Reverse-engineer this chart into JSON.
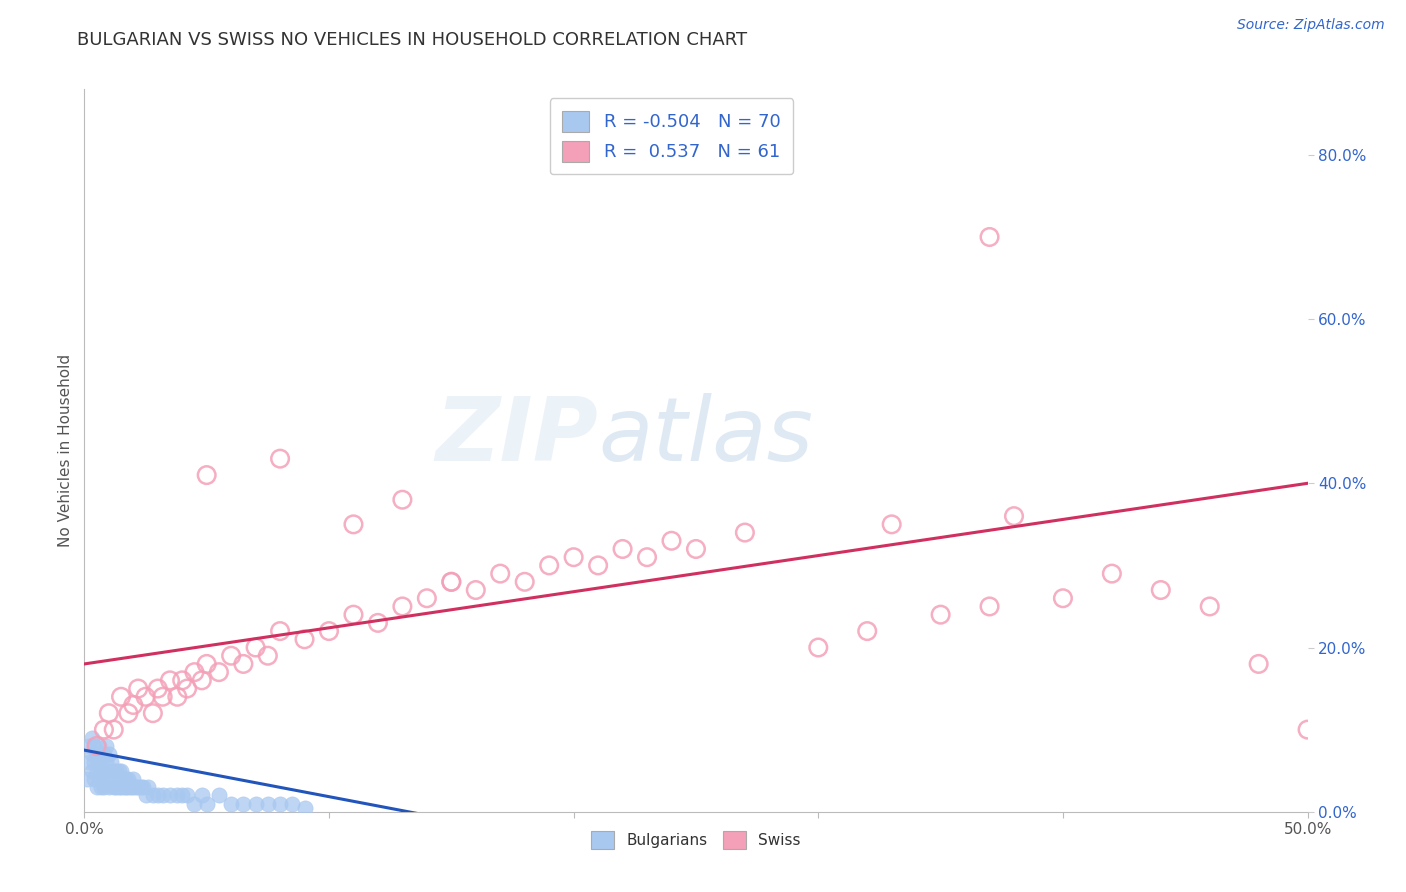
{
  "title": "BULGARIAN VS SWISS NO VEHICLES IN HOUSEHOLD CORRELATION CHART",
  "source": "Source: ZipAtlas.com",
  "ylabel": "No Vehicles in Household",
  "right_yticks": [
    0.0,
    0.2,
    0.4,
    0.6,
    0.8
  ],
  "right_yticklabels": [
    "0.0%",
    "20.0%",
    "40.0%",
    "60.0%",
    "80.0%"
  ],
  "bulgarian_R": -0.504,
  "bulgarian_N": 70,
  "swiss_R": 0.537,
  "swiss_N": 61,
  "xlim": [
    0.0,
    0.5
  ],
  "ylim": [
    0.0,
    0.88
  ],
  "bulgarian_color": "#a8c8f0",
  "swiss_color": "#f4a0b8",
  "bulgarian_line_color": "#2255bb",
  "swiss_line_color": "#d03060",
  "legend_text_color": "#3366cc",
  "watermark_zip": "ZIP",
  "watermark_atlas": "atlas",
  "background_color": "#ffffff",
  "grid_color": "#c8d4e8",
  "bulgarian_x": [
    0.001,
    0.002,
    0.002,
    0.003,
    0.003,
    0.003,
    0.004,
    0.004,
    0.004,
    0.005,
    0.005,
    0.005,
    0.006,
    0.006,
    0.006,
    0.007,
    0.007,
    0.007,
    0.008,
    0.008,
    0.008,
    0.009,
    0.009,
    0.009,
    0.01,
    0.01,
    0.01,
    0.011,
    0.011,
    0.012,
    0.012,
    0.013,
    0.013,
    0.014,
    0.014,
    0.015,
    0.015,
    0.016,
    0.016,
    0.017,
    0.017,
    0.018,
    0.018,
    0.019,
    0.02,
    0.02,
    0.021,
    0.022,
    0.023,
    0.024,
    0.025,
    0.026,
    0.028,
    0.03,
    0.032,
    0.035,
    0.038,
    0.04,
    0.042,
    0.045,
    0.048,
    0.05,
    0.055,
    0.06,
    0.065,
    0.07,
    0.075,
    0.08,
    0.085,
    0.09
  ],
  "bulgarian_y": [
    0.04,
    0.06,
    0.08,
    0.05,
    0.07,
    0.09,
    0.04,
    0.06,
    0.08,
    0.03,
    0.05,
    0.07,
    0.04,
    0.06,
    0.08,
    0.03,
    0.05,
    0.07,
    0.03,
    0.05,
    0.07,
    0.04,
    0.06,
    0.08,
    0.03,
    0.05,
    0.07,
    0.04,
    0.06,
    0.03,
    0.05,
    0.03,
    0.05,
    0.03,
    0.05,
    0.03,
    0.05,
    0.03,
    0.04,
    0.03,
    0.04,
    0.03,
    0.04,
    0.03,
    0.03,
    0.04,
    0.03,
    0.03,
    0.03,
    0.03,
    0.02,
    0.03,
    0.02,
    0.02,
    0.02,
    0.02,
    0.02,
    0.02,
    0.02,
    0.01,
    0.02,
    0.01,
    0.02,
    0.01,
    0.01,
    0.01,
    0.01,
    0.01,
    0.01,
    0.005
  ],
  "swiss_x": [
    0.005,
    0.008,
    0.01,
    0.012,
    0.015,
    0.018,
    0.02,
    0.022,
    0.025,
    0.028,
    0.03,
    0.032,
    0.035,
    0.038,
    0.04,
    0.042,
    0.045,
    0.048,
    0.05,
    0.055,
    0.06,
    0.065,
    0.07,
    0.075,
    0.08,
    0.09,
    0.1,
    0.11,
    0.12,
    0.13,
    0.14,
    0.15,
    0.16,
    0.17,
    0.18,
    0.19,
    0.2,
    0.21,
    0.22,
    0.23,
    0.24,
    0.25,
    0.27,
    0.3,
    0.32,
    0.33,
    0.35,
    0.37,
    0.38,
    0.4,
    0.42,
    0.44,
    0.46,
    0.48,
    0.5,
    0.05,
    0.08,
    0.11,
    0.13,
    0.15,
    0.37
  ],
  "swiss_y": [
    0.08,
    0.1,
    0.12,
    0.1,
    0.14,
    0.12,
    0.13,
    0.15,
    0.14,
    0.12,
    0.15,
    0.14,
    0.16,
    0.14,
    0.16,
    0.15,
    0.17,
    0.16,
    0.18,
    0.17,
    0.19,
    0.18,
    0.2,
    0.19,
    0.22,
    0.21,
    0.22,
    0.24,
    0.23,
    0.25,
    0.26,
    0.28,
    0.27,
    0.29,
    0.28,
    0.3,
    0.31,
    0.3,
    0.32,
    0.31,
    0.33,
    0.32,
    0.34,
    0.2,
    0.22,
    0.35,
    0.24,
    0.25,
    0.36,
    0.26,
    0.29,
    0.27,
    0.25,
    0.18,
    0.1,
    0.41,
    0.43,
    0.35,
    0.38,
    0.28,
    0.7
  ],
  "swiss_line_x0": 0.0,
  "swiss_line_y0": 0.18,
  "swiss_line_x1": 0.5,
  "swiss_line_y1": 0.4,
  "bulgarian_line_x0": 0.0,
  "bulgarian_line_y0": 0.075,
  "bulgarian_line_x1": 0.15,
  "bulgarian_line_y1": -0.01
}
